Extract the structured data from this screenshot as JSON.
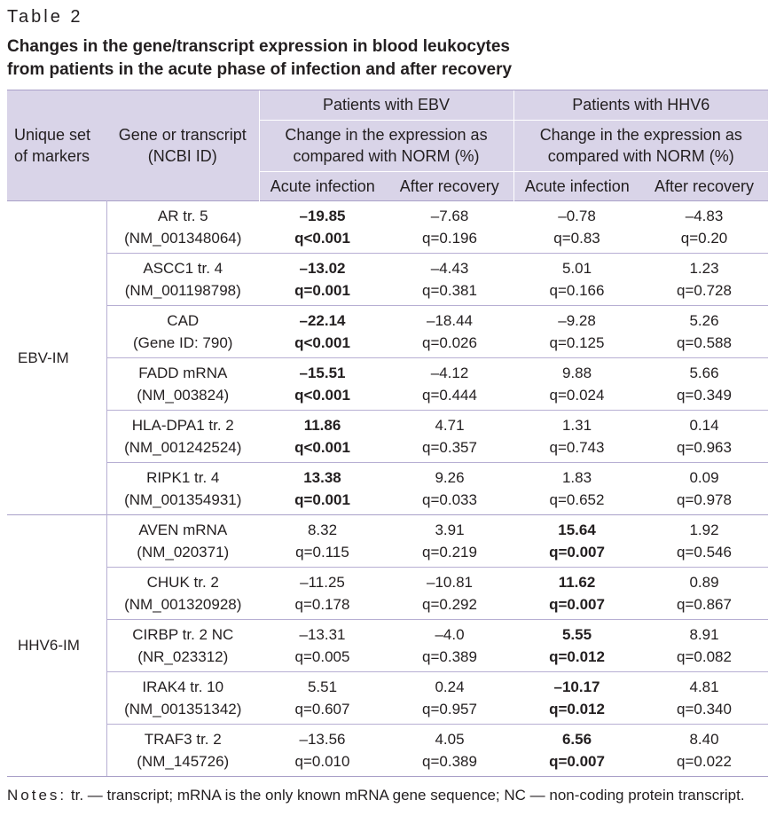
{
  "table_label": "Table 2",
  "caption_line1": "Changes in the gene/transcript expression in blood leukocytes",
  "caption_line2": "from patients in the acute phase of infection and after recovery",
  "header": {
    "unique_set": "Unique set of markers",
    "gene": "Gene or transcript (NCBI ID)",
    "group_ebv": "Patients with EBV",
    "group_hhv6": "Patients with HHV6",
    "change_ebv": "Change in the expression as compared with NORM (%)",
    "change_hhv6": "Change in the expression as compared with NORM (%)",
    "acute": "Acute infection",
    "after": "After recovery"
  },
  "groups": [
    {
      "name": "EBV-IM",
      "rows": [
        {
          "gene": "AR tr. 5",
          "id": "(NM_001348064)",
          "ebv_acute": [
            "–19.85",
            "q<0.001",
            true
          ],
          "ebv_after": [
            "–7.68",
            "q=0.196",
            false
          ],
          "hhv6_acute": [
            "–0.78",
            "q=0.83",
            false
          ],
          "hhv6_after": [
            "–4.83",
            "q=0.20",
            false
          ]
        },
        {
          "gene": "ASCC1 tr. 4",
          "id": "(NM_001198798)",
          "ebv_acute": [
            "–13.02",
            "q=0.001",
            true
          ],
          "ebv_after": [
            "–4.43",
            "q=0.381",
            false
          ],
          "hhv6_acute": [
            "5.01",
            "q=0.166",
            false
          ],
          "hhv6_after": [
            "1.23",
            "q=0.728",
            false
          ]
        },
        {
          "gene": "CAD",
          "id": "(Gene ID: 790)",
          "ebv_acute": [
            "–22.14",
            "q<0.001",
            true
          ],
          "ebv_after": [
            "–18.44",
            "q=0.026",
            false
          ],
          "hhv6_acute": [
            "–9.28",
            "q=0.125",
            false
          ],
          "hhv6_after": [
            "5.26",
            "q=0.588",
            false
          ]
        },
        {
          "gene": "FADD mRNA",
          "id": "(NM_003824)",
          "ebv_acute": [
            "–15.51",
            "q<0.001",
            true
          ],
          "ebv_after": [
            "–4.12",
            "q=0.444",
            false
          ],
          "hhv6_acute": [
            "9.88",
            "q=0.024",
            false
          ],
          "hhv6_after": [
            "5.66",
            "q=0.349",
            false
          ]
        },
        {
          "gene": "HLA-DPA1 tr. 2",
          "id": "(NM_001242524)",
          "ebv_acute": [
            "11.86",
            "q<0.001",
            true
          ],
          "ebv_after": [
            "4.71",
            "q=0.357",
            false
          ],
          "hhv6_acute": [
            "1.31",
            "q=0.743",
            false
          ],
          "hhv6_after": [
            "0.14",
            "q=0.963",
            false
          ]
        },
        {
          "gene": "RIPK1 tr. 4",
          "id": "(NM_001354931)",
          "ebv_acute": [
            "13.38",
            "q=0.001",
            true
          ],
          "ebv_after": [
            "9.26",
            "q=0.033",
            false
          ],
          "hhv6_acute": [
            "1.83",
            "q=0.652",
            false
          ],
          "hhv6_after": [
            "0.09",
            "q=0.978",
            false
          ]
        }
      ]
    },
    {
      "name": "HHV6-IM",
      "rows": [
        {
          "gene": "AVEN mRNA",
          "id": "(NM_020371)",
          "ebv_acute": [
            "8.32",
            "q=0.115",
            false
          ],
          "ebv_after": [
            "3.91",
            "q=0.219",
            false
          ],
          "hhv6_acute": [
            "15.64",
            "q=0.007",
            true
          ],
          "hhv6_after": [
            "1.92",
            "q=0.546",
            false
          ]
        },
        {
          "gene": "CHUK tr. 2",
          "id": "(NM_001320928)",
          "ebv_acute": [
            "–11.25",
            "q=0.178",
            false
          ],
          "ebv_after": [
            "–10.81",
            "q=0.292",
            false
          ],
          "hhv6_acute": [
            "11.62",
            "q=0.007",
            true
          ],
          "hhv6_after": [
            "0.89",
            "q=0.867",
            false
          ]
        },
        {
          "gene": "CIRBP tr. 2 NC",
          "id": "(NR_023312)",
          "ebv_acute": [
            "–13.31",
            "q=0.005",
            false
          ],
          "ebv_after": [
            "–4.0",
            "q=0.389",
            false
          ],
          "hhv6_acute": [
            "5.55",
            "q=0.012",
            true
          ],
          "hhv6_after": [
            "8.91",
            "q=0.082",
            false
          ]
        },
        {
          "gene": "IRAK4 tr. 10",
          "id": "(NM_001351342)",
          "ebv_acute": [
            "5.51",
            "q=0.607",
            false
          ],
          "ebv_after": [
            "0.24",
            "q=0.957",
            false
          ],
          "hhv6_acute": [
            "–10.17",
            "q=0.012",
            true
          ],
          "hhv6_after": [
            "4.81",
            "q=0.340",
            false
          ]
        },
        {
          "gene": "TRAF3 tr. 2",
          "id": "(NM_145726)",
          "ebv_acute": [
            "–13.56",
            "q=0.010",
            false
          ],
          "ebv_after": [
            "4.05",
            "q=0.389",
            false
          ],
          "hhv6_acute": [
            "6.56",
            "q=0.007",
            true
          ],
          "hhv6_after": [
            "8.40",
            "q=0.022",
            false
          ]
        }
      ]
    }
  ],
  "notes_label": "Notes:",
  "notes_text": "tr. — transcript; mRNA is the only known mRNA gene sequence; NC — non-coding protein transcript."
}
